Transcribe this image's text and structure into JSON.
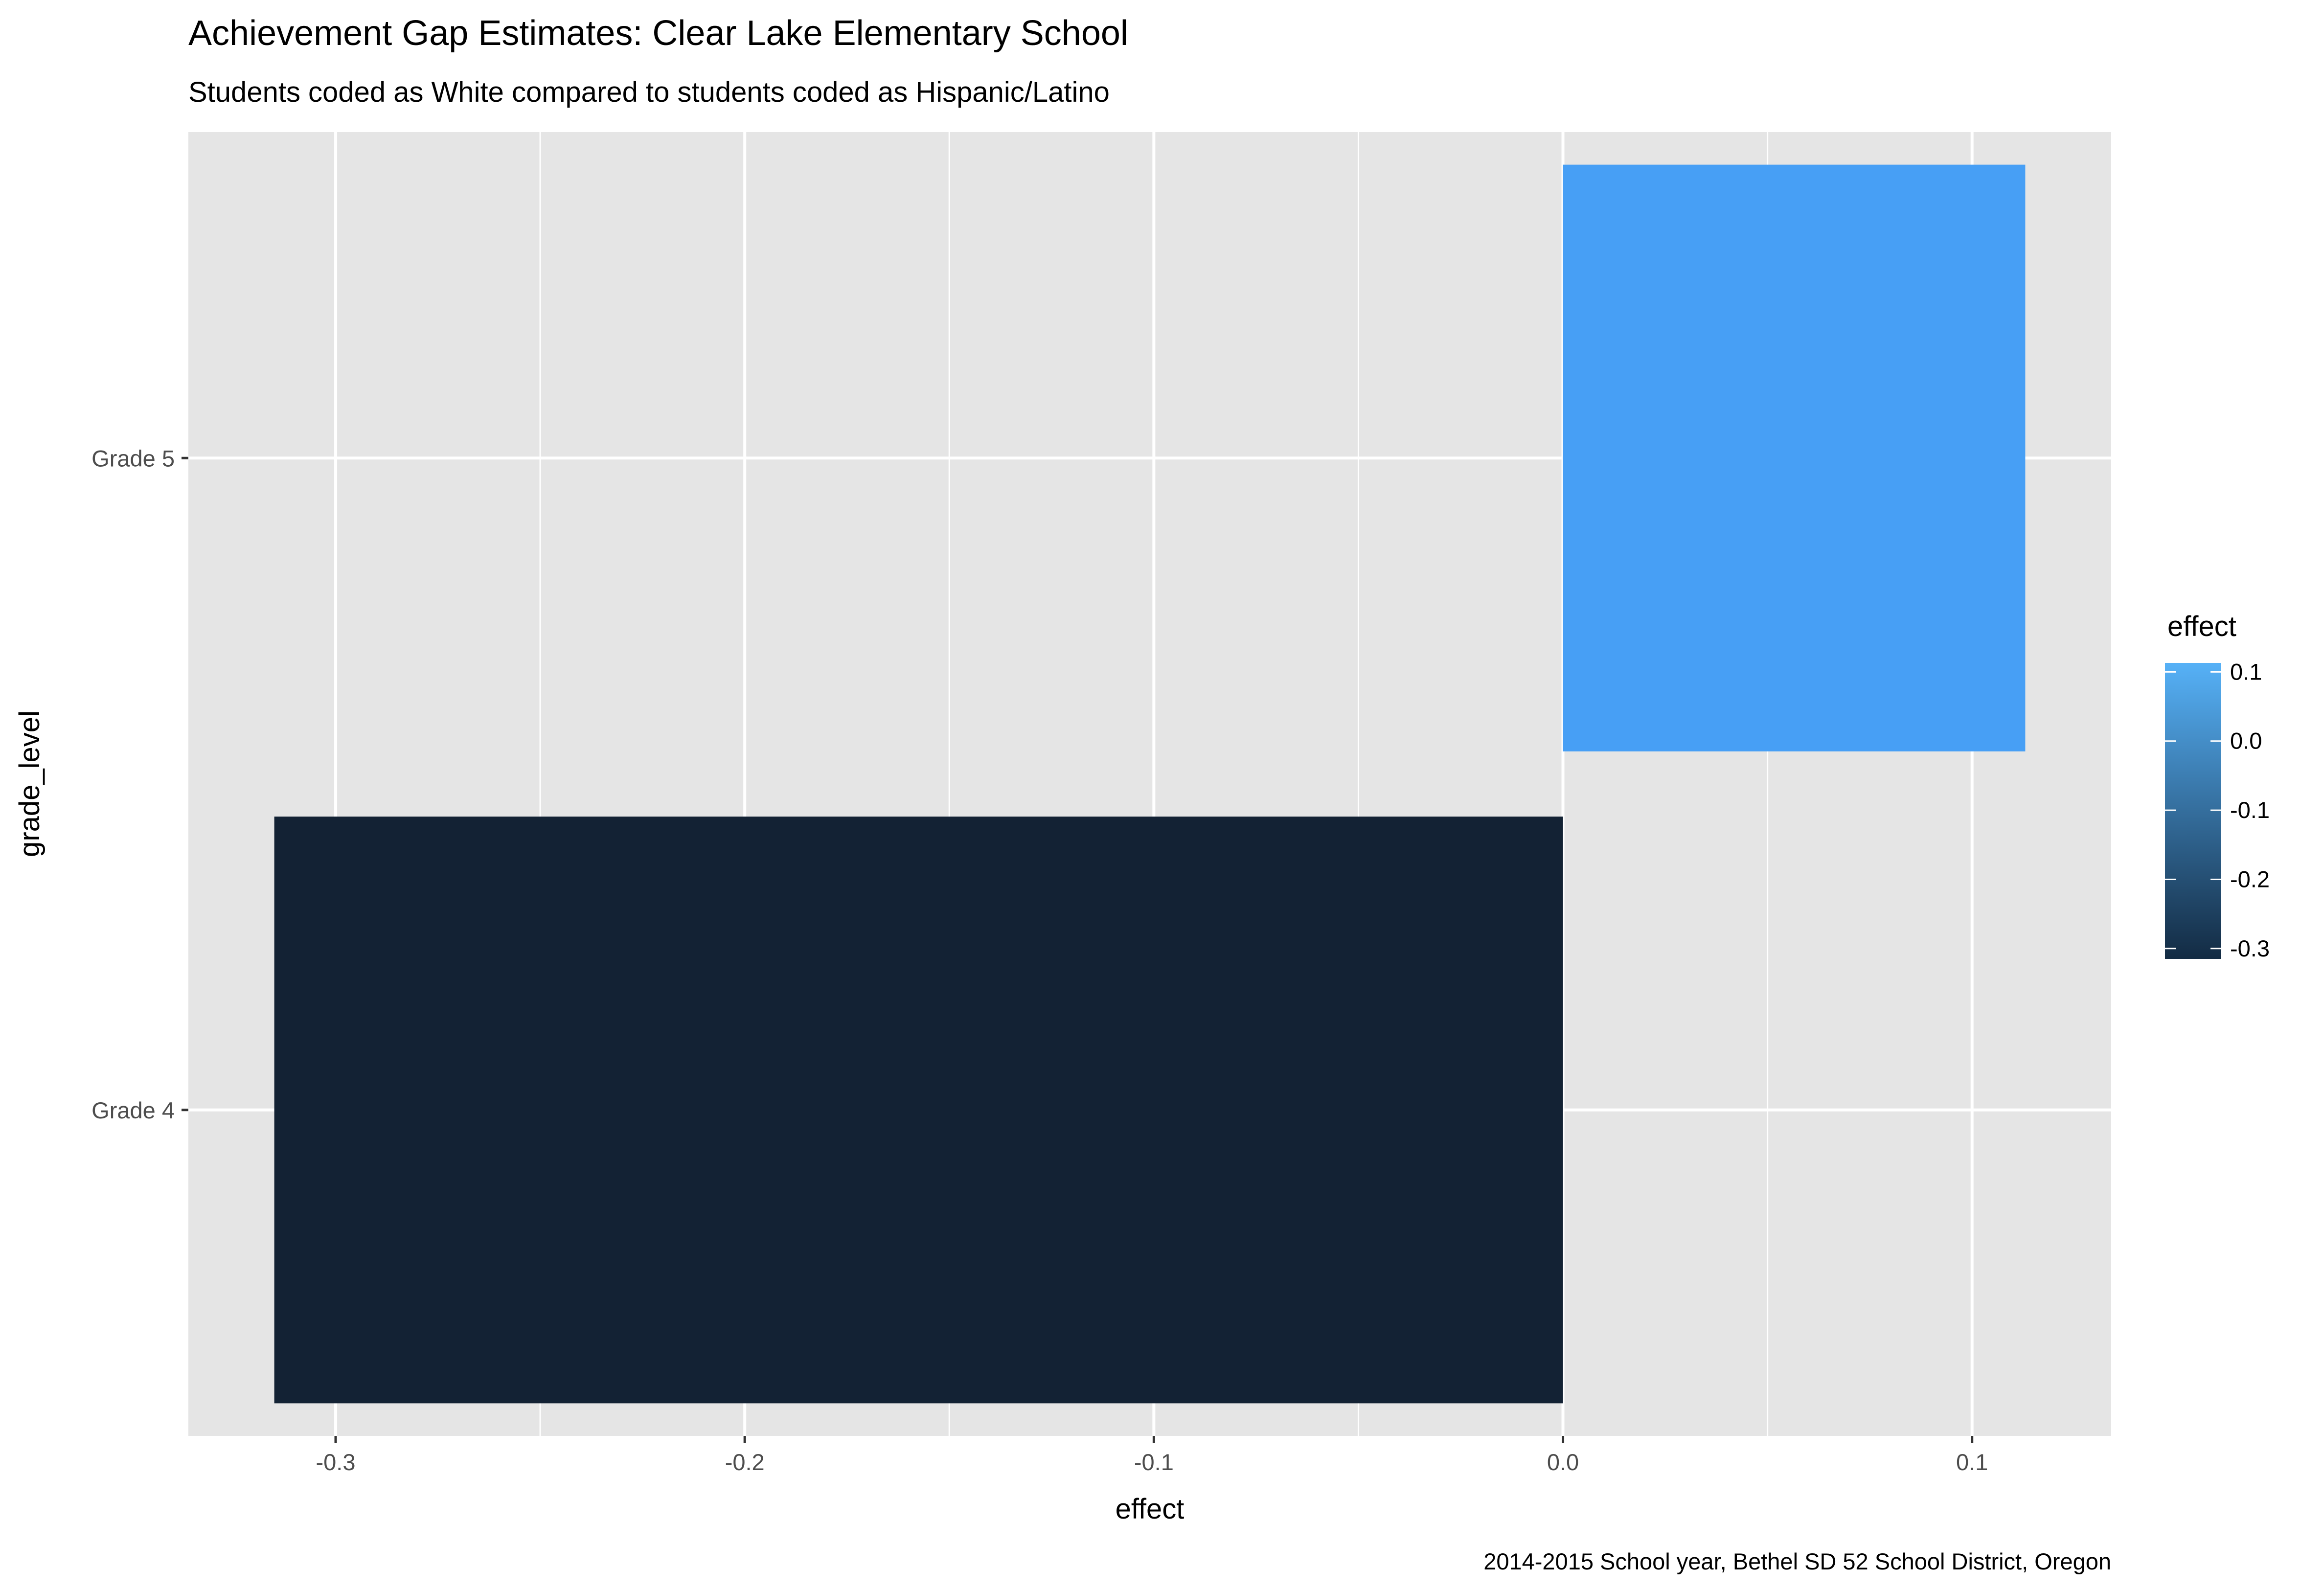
{
  "chart_data": {
    "type": "bar",
    "orientation": "horizontal",
    "title": "Achievement Gap Estimates: Clear Lake Elementary School",
    "subtitle": "Students coded as White compared to students coded as Hispanic/Latino",
    "caption": "2014-2015 School year, Bethel SD 52 School District, Oregon",
    "xlabel": "effect",
    "ylabel": "grade_level",
    "categories": [
      "Grade 4",
      "Grade 5"
    ],
    "values": [
      -0.315,
      0.113
    ],
    "xlim": [
      -0.336,
      0.134
    ],
    "x_ticks": [
      -0.3,
      -0.2,
      -0.1,
      0.0,
      0.1
    ],
    "x_tick_labels": [
      "-0.3",
      "-0.2",
      "-0.1",
      "0.0",
      "0.1"
    ],
    "grid": true,
    "panel_background": "#e5e5e5",
    "legend": {
      "title": "effect",
      "position": "right",
      "type": "colorbar",
      "ticks": [
        0.1,
        0.0,
        -0.1,
        -0.2,
        -0.3
      ],
      "tick_labels": [
        "0.1",
        "0.0",
        "-0.1",
        "-0.2",
        "-0.3"
      ],
      "color_low": "#132b43",
      "color_high": "#56b1f7"
    },
    "bar_colors": [
      "#132234",
      "#479ff5"
    ]
  }
}
